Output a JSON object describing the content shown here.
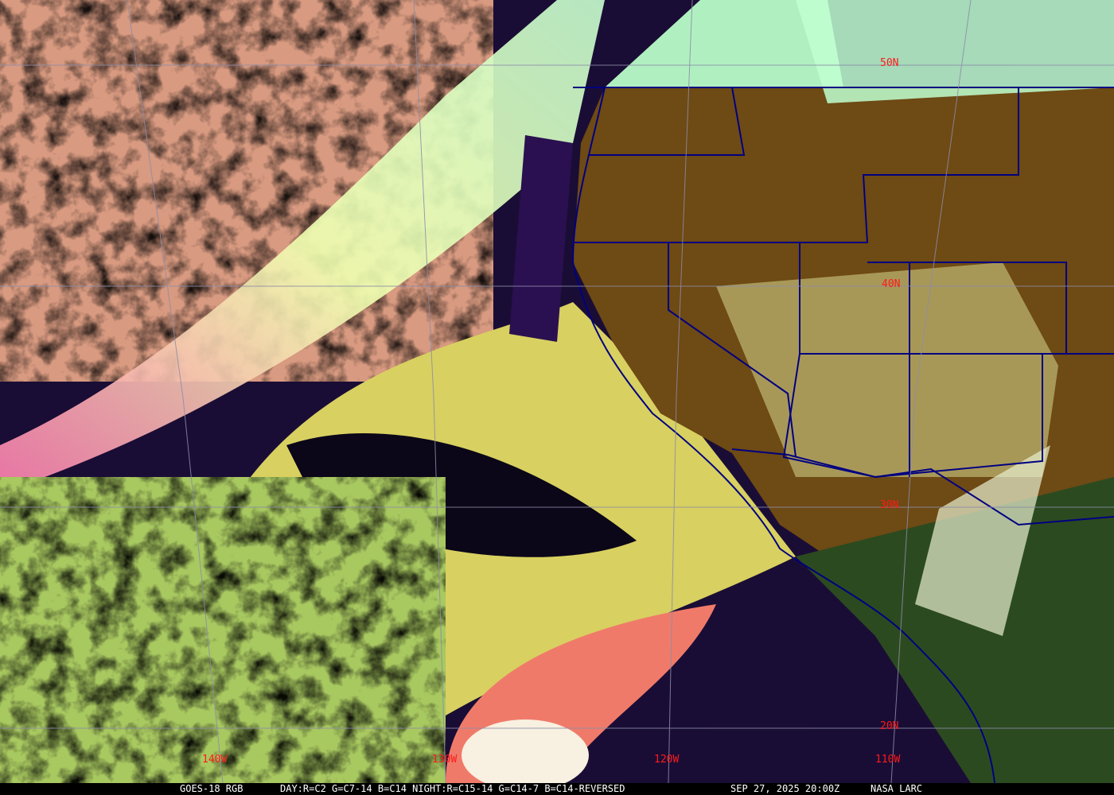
{
  "map": {
    "satellite": "GOES-18",
    "product": "RGB",
    "region": "Northeast Pacific / Western North America",
    "latitude_labels": [
      "50N",
      "40N",
      "30N",
      "20N"
    ],
    "longitude_labels": [
      "140W",
      "130W",
      "120W",
      "110W"
    ],
    "gridline_color": "#8c8ca8",
    "label_color": "#ff1a1a",
    "boundary_color": "#000080"
  },
  "caption": {
    "title": "GOES-18 RGB",
    "recipe": "DAY:R=C2 G=C7-14 B=C14 NIGHT:R=C15-14 G=C14-7 B=C14-REVERSED",
    "datetime": "SEP 27, 2025 20:00Z",
    "credit": "NASA LARC"
  }
}
